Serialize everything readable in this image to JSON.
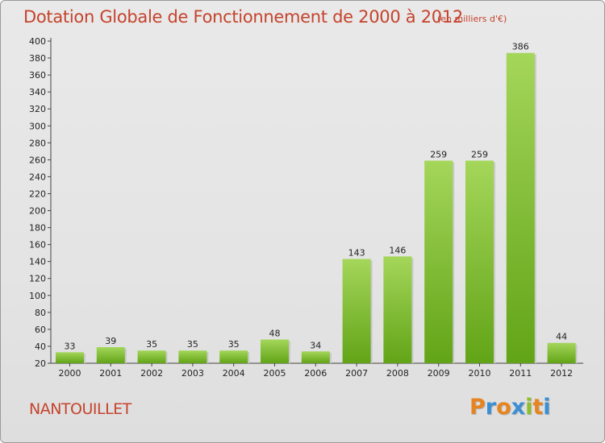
{
  "title": "Dotation Globale de Fonctionnement de 2000 à 2012",
  "unit": "(en milliers d'€)",
  "commune": "NANTOUILLET",
  "logo": {
    "letters": [
      "P",
      "r",
      "o",
      "x",
      "i",
      "t",
      "i"
    ],
    "colors": [
      "#e8841f",
      "#3a8fd4",
      "#e8841f",
      "#3a8fd4",
      "#8cbf2a",
      "#e8841f",
      "#3a8fd4"
    ]
  },
  "colors": {
    "title": "#c5432c",
    "bar_light": "#a4d65a",
    "bar_dark": "#62a417"
  },
  "chart_data": {
    "type": "bar",
    "title": "Dotation Globale de Fonctionnement de 2000 à 2012",
    "subtitle": "(en milliers d'€)",
    "categories": [
      "2000",
      "2001",
      "2002",
      "2003",
      "2004",
      "2005",
      "2006",
      "2007",
      "2008",
      "2009",
      "2010",
      "2011",
      "2012"
    ],
    "values": [
      33,
      39,
      35,
      35,
      35,
      48,
      34,
      143,
      146,
      259,
      259,
      386,
      44
    ],
    "ylim": [
      20,
      400
    ],
    "yticks": [
      20,
      40,
      60,
      80,
      100,
      120,
      140,
      160,
      180,
      200,
      220,
      240,
      260,
      280,
      300,
      320,
      340,
      360,
      380,
      400
    ],
    "grid": false,
    "legend": "none"
  }
}
